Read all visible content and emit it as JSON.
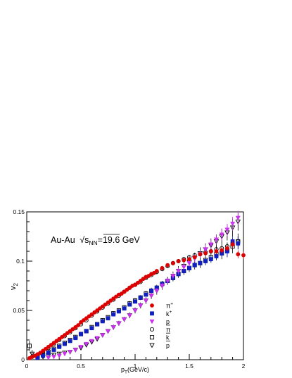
{
  "chart_data": {
    "type": "scatter",
    "annotation": {
      "prefix": "Au-Au",
      "sqrt_symbol": "√",
      "s": "s",
      "sub": "NN",
      "suffix": "=19.6 GeV"
    },
    "xlabel": {
      "main": "p",
      "sub": "T",
      "rest": "(GeV/c)"
    },
    "ylabel": {
      "main": "v",
      "sub": "2"
    },
    "xlim": [
      0,
      2
    ],
    "ylim": [
      0,
      0.15
    ],
    "x_ticks": [
      "0",
      "0.5",
      "1",
      "1.5",
      "2"
    ],
    "y_ticks": [
      "0",
      "0.05",
      "0.1",
      "0.15"
    ],
    "legend_position": "center-right",
    "series": [
      {
        "name": "π⁺",
        "label_main": "π",
        "label_sup": "+",
        "overbar": false,
        "marker": "circle",
        "filled": true,
        "color": "#dd0000",
        "x": [
          0.025,
          0.05,
          0.075,
          0.1,
          0.125,
          0.15,
          0.175,
          0.2,
          0.225,
          0.25,
          0.275,
          0.3,
          0.325,
          0.35,
          0.375,
          0.4,
          0.425,
          0.45,
          0.475,
          0.5,
          0.525,
          0.55,
          0.575,
          0.6,
          0.625,
          0.65,
          0.675,
          0.7,
          0.725,
          0.75,
          0.775,
          0.8,
          0.825,
          0.85,
          0.875,
          0.9,
          0.925,
          0.95,
          0.975,
          1.0,
          1.025,
          1.05,
          1.075,
          1.1,
          1.125,
          1.15,
          1.175,
          1.2,
          1.25,
          1.3,
          1.35,
          1.4,
          1.45,
          1.5,
          1.55,
          1.6,
          1.65,
          1.7,
          1.75,
          1.8,
          1.85,
          1.9,
          1.95,
          2.0
        ],
        "y": [
          0.0015,
          0.003,
          0.004,
          0.0055,
          0.007,
          0.009,
          0.011,
          0.013,
          0.015,
          0.017,
          0.019,
          0.021,
          0.023,
          0.025,
          0.027,
          0.029,
          0.031,
          0.033,
          0.035,
          0.038,
          0.04,
          0.042,
          0.044,
          0.046,
          0.048,
          0.05,
          0.052,
          0.054,
          0.056,
          0.058,
          0.06,
          0.062,
          0.064,
          0.066,
          0.067,
          0.069,
          0.071,
          0.073,
          0.075,
          0.076,
          0.078,
          0.08,
          0.082,
          0.084,
          0.085,
          0.087,
          0.088,
          0.09,
          0.093,
          0.096,
          0.098,
          0.1,
          0.101,
          0.102,
          0.104,
          0.107,
          0.108,
          0.11,
          0.11,
          0.111,
          0.113,
          0.117,
          0.107,
          0.106
        ],
        "err": [
          0.0005,
          0.0005,
          0.0005,
          0.0005,
          0.0005,
          0.0005,
          0.0005,
          0.0005,
          0.0005,
          0.0005,
          0.0005,
          0.0005,
          0.0005,
          0.0005,
          0.0005,
          0.0005,
          0.0005,
          0.0005,
          0.0005,
          0.0005,
          0.0005,
          0.0005,
          0.0005,
          0.0005,
          0.0005,
          0.0005,
          0.0005,
          0.0005,
          0.0005,
          0.0005,
          0.0005,
          0.0005,
          0.0005,
          0.0005,
          0.0005,
          0.0005,
          0.0005,
          0.0005,
          0.0005,
          0.0005,
          0.0005,
          0.0008,
          0.0008,
          0.0008,
          0.0008,
          0.001,
          0.001,
          0.001,
          0.001,
          0.001,
          0.0012,
          0.0012,
          0.0015,
          0.0015,
          0.0015,
          0.002,
          0.002,
          0.002,
          0.003,
          0.003,
          0.003,
          0.004,
          0.004,
          0.004
        ]
      },
      {
        "name": "k⁺",
        "label_main": "k",
        "label_sup": "+",
        "overbar": false,
        "marker": "square",
        "filled": true,
        "color": "#1020c0",
        "x": [
          0.1,
          0.15,
          0.2,
          0.25,
          0.3,
          0.35,
          0.4,
          0.45,
          0.5,
          0.55,
          0.6,
          0.65,
          0.7,
          0.75,
          0.8,
          0.85,
          0.9,
          0.95,
          1.0,
          1.05,
          1.1,
          1.15,
          1.2,
          1.25,
          1.3,
          1.35,
          1.4,
          1.45,
          1.5,
          1.55,
          1.6,
          1.65,
          1.7,
          1.75,
          1.8,
          1.85,
          1.9,
          1.95
        ],
        "y": [
          0.002,
          0.004,
          0.007,
          0.01,
          0.013,
          0.016,
          0.019,
          0.022,
          0.026,
          0.029,
          0.032,
          0.036,
          0.039,
          0.042,
          0.046,
          0.049,
          0.052,
          0.056,
          0.059,
          0.063,
          0.066,
          0.07,
          0.073,
          0.077,
          0.08,
          0.083,
          0.087,
          0.09,
          0.093,
          0.096,
          0.098,
          0.1,
          0.102,
          0.105,
          0.108,
          0.11,
          0.12,
          0.118
        ],
        "err": [
          0.001,
          0.001,
          0.001,
          0.001,
          0.001,
          0.001,
          0.001,
          0.001,
          0.001,
          0.001,
          0.001,
          0.001,
          0.001,
          0.001,
          0.001,
          0.001,
          0.001,
          0.0015,
          0.0015,
          0.0015,
          0.0015,
          0.002,
          0.002,
          0.002,
          0.002,
          0.002,
          0.0025,
          0.0025,
          0.0025,
          0.003,
          0.003,
          0.003,
          0.0035,
          0.004,
          0.004,
          0.005,
          0.005,
          0.006
        ]
      },
      {
        "name": "p",
        "label_main": "p",
        "label_sup": "",
        "overbar": false,
        "marker": "triangle-down",
        "filled": true,
        "color": "#cc33ee",
        "x": [
          0.2,
          0.25,
          0.3,
          0.35,
          0.4,
          0.45,
          0.5,
          0.55,
          0.6,
          0.65,
          0.7,
          0.75,
          0.8,
          0.85,
          0.9,
          0.95,
          1.0,
          1.05,
          1.1,
          1.15,
          1.2,
          1.25,
          1.3,
          1.35,
          1.4,
          1.45,
          1.5,
          1.55,
          1.6,
          1.65,
          1.7,
          1.75,
          1.8,
          1.85,
          1.9,
          1.95
        ],
        "y": [
          0.002,
          0.003,
          0.004,
          0.006,
          0.008,
          0.01,
          0.013,
          0.016,
          0.019,
          0.022,
          0.025,
          0.029,
          0.033,
          0.037,
          0.041,
          0.045,
          0.05,
          0.055,
          0.06,
          0.065,
          0.07,
          0.075,
          0.08,
          0.085,
          0.09,
          0.094,
          0.098,
          0.103,
          0.107,
          0.112,
          0.117,
          0.122,
          0.127,
          0.132,
          0.138,
          0.144
        ],
        "err": [
          0.001,
          0.001,
          0.001,
          0.001,
          0.001,
          0.001,
          0.001,
          0.001,
          0.0015,
          0.0015,
          0.0015,
          0.0015,
          0.0015,
          0.0015,
          0.002,
          0.002,
          0.002,
          0.002,
          0.0025,
          0.0025,
          0.0025,
          0.003,
          0.003,
          0.003,
          0.0035,
          0.0035,
          0.004,
          0.004,
          0.004,
          0.005,
          0.005,
          0.005,
          0.006,
          0.006,
          0.007,
          0.007
        ]
      },
      {
        "name": "π",
        "label_main": "π",
        "label_sup": "",
        "overbar": true,
        "marker": "circle",
        "filled": false,
        "color": "#000000",
        "x": [
          0.05,
          0.1,
          0.15,
          0.2,
          0.25,
          0.3,
          0.35,
          0.4,
          0.45,
          0.5,
          0.55,
          0.6,
          0.65,
          0.7,
          0.75,
          0.8,
          0.85,
          0.9,
          0.95,
          1.0,
          1.05,
          1.1,
          1.15,
          1.2,
          1.25,
          1.3,
          1.35,
          1.4,
          1.45,
          1.5,
          1.55,
          1.6,
          1.65,
          1.7,
          1.75,
          1.8,
          1.85,
          1.9,
          1.95
        ],
        "y": [
          0.003,
          0.005,
          0.008,
          0.012,
          0.016,
          0.02,
          0.024,
          0.028,
          0.032,
          0.036,
          0.04,
          0.045,
          0.049,
          0.053,
          0.057,
          0.061,
          0.065,
          0.069,
          0.073,
          0.076,
          0.079,
          0.083,
          0.086,
          0.089,
          0.092,
          0.095,
          0.098,
          0.1,
          0.102,
          0.104,
          0.106,
          0.107,
          0.109,
          0.11,
          0.112,
          0.113,
          0.115,
          0.118,
          0.12
        ],
        "err": [
          0.0008,
          0.0008,
          0.0008,
          0.0008,
          0.0008,
          0.0008,
          0.0008,
          0.0008,
          0.0008,
          0.0008,
          0.0008,
          0.0008,
          0.0008,
          0.0008,
          0.0008,
          0.0008,
          0.001,
          0.001,
          0.001,
          0.001,
          0.001,
          0.0012,
          0.0012,
          0.0015,
          0.0015,
          0.0015,
          0.002,
          0.002,
          0.002,
          0.0025,
          0.0025,
          0.003,
          0.003,
          0.003,
          0.0035,
          0.004,
          0.004,
          0.005,
          0.005
        ]
      },
      {
        "name": "k̄",
        "label_main": "k",
        "label_sup": "",
        "overbar": true,
        "marker": "square",
        "filled": false,
        "color": "#000000",
        "x": [
          0.025,
          0.1,
          0.15,
          0.2,
          0.25,
          0.3,
          0.35,
          0.4,
          0.45,
          0.5,
          0.55,
          0.6,
          0.65,
          0.7,
          0.75,
          0.8,
          0.85,
          0.9,
          0.95,
          1.0,
          1.05,
          1.1,
          1.15,
          1.2,
          1.25,
          1.3,
          1.35,
          1.4,
          1.45,
          1.5,
          1.55,
          1.6,
          1.65,
          1.7,
          1.75,
          1.8,
          1.85,
          1.9,
          1.95
        ],
        "y": [
          0.014,
          0.003,
          0.005,
          0.008,
          0.011,
          0.014,
          0.017,
          0.02,
          0.023,
          0.026,
          0.029,
          0.033,
          0.036,
          0.04,
          0.043,
          0.047,
          0.05,
          0.053,
          0.057,
          0.06,
          0.063,
          0.067,
          0.07,
          0.073,
          0.077,
          0.08,
          0.083,
          0.087,
          0.09,
          0.093,
          0.096,
          0.098,
          0.101,
          0.104,
          0.107,
          0.108,
          0.111,
          0.115,
          0.12
        ],
        "err": [
          0.005,
          0.0015,
          0.0015,
          0.0015,
          0.0015,
          0.0015,
          0.0015,
          0.0015,
          0.0015,
          0.0015,
          0.0015,
          0.0015,
          0.002,
          0.002,
          0.002,
          0.002,
          0.002,
          0.002,
          0.0025,
          0.0025,
          0.0025,
          0.003,
          0.003,
          0.003,
          0.003,
          0.0035,
          0.0035,
          0.004,
          0.004,
          0.004,
          0.0045,
          0.005,
          0.005,
          0.0055,
          0.006,
          0.006,
          0.007,
          0.007,
          0.008
        ]
      },
      {
        "name": "p̄",
        "label_main": "p",
        "label_sup": "",
        "overbar": true,
        "marker": "triangle-down",
        "filled": false,
        "color": "#000000",
        "x": [
          0.05,
          0.1,
          0.15,
          0.2,
          0.25,
          0.3,
          0.35,
          0.4,
          0.45,
          0.5,
          0.55,
          0.6,
          0.65,
          0.7,
          0.75,
          0.8,
          0.85,
          0.9,
          0.95,
          1.0,
          1.05,
          1.1,
          1.15,
          1.2,
          1.25,
          1.3,
          1.35,
          1.4,
          1.45,
          1.5,
          1.55,
          1.6,
          1.65,
          1.7,
          1.75,
          1.8,
          1.85,
          1.9,
          1.95
        ],
        "y": [
          0.006,
          0.004,
          0.003,
          0.004,
          0.005,
          0.006,
          0.007,
          0.008,
          0.01,
          0.012,
          0.015,
          0.018,
          0.021,
          0.025,
          0.029,
          0.033,
          0.037,
          0.041,
          0.045,
          0.05,
          0.055,
          0.06,
          0.065,
          0.07,
          0.075,
          0.08,
          0.085,
          0.09,
          0.095,
          0.099,
          0.103,
          0.108,
          0.112,
          0.116,
          0.12,
          0.125,
          0.129,
          0.134,
          0.14
        ],
        "err": [
          0.004,
          0.002,
          0.002,
          0.002,
          0.0015,
          0.0015,
          0.0015,
          0.0015,
          0.0015,
          0.0015,
          0.002,
          0.002,
          0.002,
          0.002,
          0.002,
          0.0025,
          0.0025,
          0.0025,
          0.003,
          0.003,
          0.003,
          0.0035,
          0.0035,
          0.004,
          0.004,
          0.004,
          0.0045,
          0.005,
          0.005,
          0.005,
          0.0055,
          0.006,
          0.006,
          0.007,
          0.007,
          0.008,
          0.008,
          0.009,
          0.009
        ]
      }
    ]
  }
}
